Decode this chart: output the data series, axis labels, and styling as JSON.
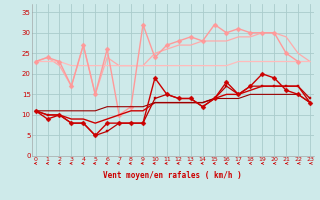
{
  "x": [
    0,
    1,
    2,
    3,
    4,
    5,
    6,
    7,
    8,
    9,
    10,
    11,
    12,
    13,
    14,
    15,
    16,
    17,
    18,
    19,
    20,
    21,
    22,
    23
  ],
  "bg_color": "#ceeaea",
  "grid_color": "#aacccc",
  "lines": [
    {
      "y": [
        11,
        9,
        10,
        8,
        8,
        5,
        8,
        8,
        8,
        8,
        19,
        15,
        14,
        14,
        12,
        14,
        18,
        15,
        17,
        20,
        19,
        16,
        15,
        13
      ],
      "color": "#cc0000",
      "marker": "D",
      "ms": 2.5,
      "lw": 1.0,
      "zorder": 5
    },
    {
      "y": [
        11,
        10,
        10,
        8,
        8,
        5,
        6,
        8,
        8,
        8,
        14,
        15,
        14,
        14,
        12,
        14,
        17,
        15,
        17,
        17,
        17,
        17,
        17,
        14
      ],
      "color": "#bb0000",
      "marker": "s",
      "ms": 2.0,
      "lw": 0.9,
      "zorder": 4
    },
    {
      "y": [
        11,
        10,
        10,
        9,
        9,
        8,
        9,
        10,
        11,
        11,
        13,
        13,
        13,
        13,
        13,
        14,
        15,
        15,
        16,
        17,
        17,
        17,
        17,
        13
      ],
      "color": "#cc0000",
      "marker": null,
      "ms": 0,
      "lw": 1.0,
      "zorder": 4
    },
    {
      "y": [
        11,
        11,
        11,
        11,
        11,
        11,
        12,
        12,
        12,
        12,
        13,
        13,
        13,
        13,
        13,
        14,
        14,
        14,
        15,
        15,
        15,
        15,
        15,
        13
      ],
      "color": "#990000",
      "marker": null,
      "ms": 0,
      "lw": 0.8,
      "zorder": 4
    },
    {
      "y": [
        23,
        24,
        23,
        17,
        27,
        15,
        26,
        10,
        12,
        32,
        24,
        27,
        28,
        29,
        28,
        32,
        30,
        31,
        30,
        30,
        30,
        25,
        23,
        null
      ],
      "color": "#ff9999",
      "marker": "D",
      "ms": 2.5,
      "lw": 1.0,
      "zorder": 3
    },
    {
      "y": [
        23,
        24,
        22,
        17,
        27,
        15,
        24,
        22,
        22,
        22,
        25,
        26,
        27,
        27,
        28,
        28,
        28,
        29,
        29,
        30,
        30,
        29,
        25,
        23
      ],
      "color": "#ffaaaa",
      "marker": null,
      "ms": 0,
      "lw": 0.9,
      "zorder": 2
    },
    {
      "y": [
        23,
        23,
        23,
        22,
        22,
        22,
        22,
        22,
        22,
        22,
        22,
        22,
        22,
        22,
        22,
        22,
        22,
        23,
        23,
        23,
        23,
        23,
        23,
        23
      ],
      "color": "#ffbbbb",
      "marker": null,
      "ms": 0,
      "lw": 0.9,
      "zorder": 2
    }
  ],
  "arrows_angles": [
    225,
    225,
    225,
    215,
    210,
    200,
    195,
    185,
    180,
    175,
    170,
    165,
    160,
    155,
    150,
    145,
    140,
    135,
    130,
    125,
    120,
    115,
    110,
    105
  ],
  "xlabel": "Vent moyen/en rafales ( km/h )",
  "ylim": [
    0,
    37
  ],
  "xlim": [
    -0.3,
    23.3
  ],
  "yticks": [
    0,
    5,
    10,
    15,
    20,
    25,
    30,
    35
  ],
  "xticks": [
    0,
    1,
    2,
    3,
    4,
    5,
    6,
    7,
    8,
    9,
    10,
    11,
    12,
    13,
    14,
    15,
    16,
    17,
    18,
    19,
    20,
    21,
    22,
    23
  ]
}
